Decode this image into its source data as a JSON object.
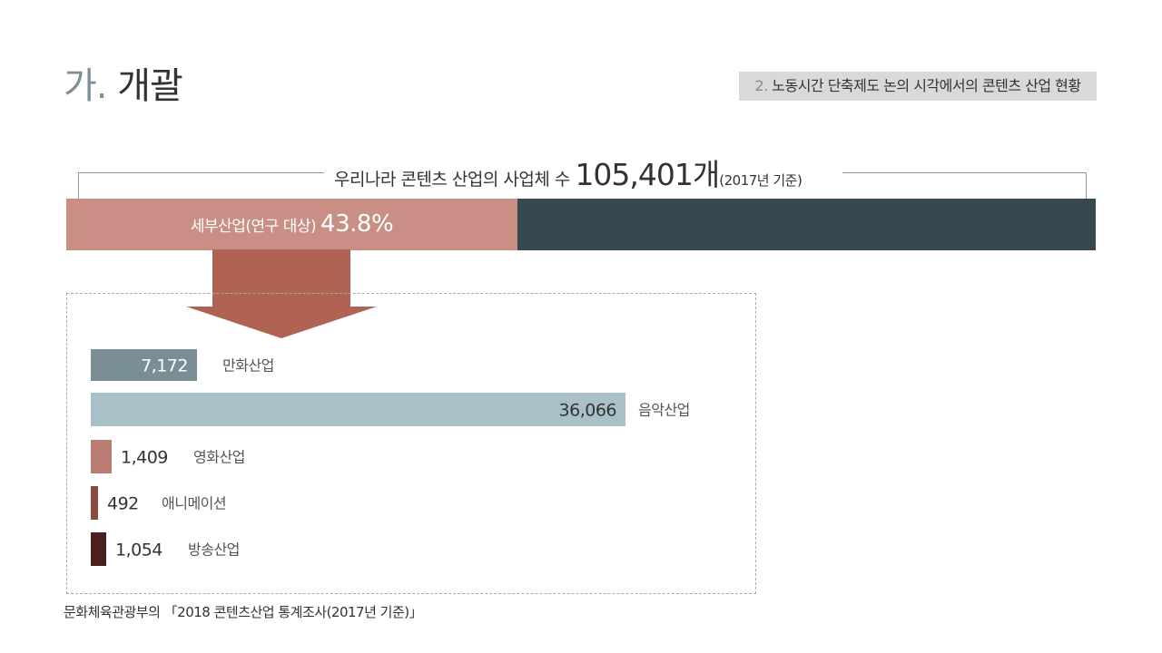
{
  "header": {
    "title_num": "가.",
    "title_text": "개괄",
    "section_num": "2.",
    "section_text": "노동시간 단축제도 논의 시각에서의 콘텐츠 산업 현황"
  },
  "total": {
    "prefix": "우리나라 콘텐츠 산업의 사업체 수",
    "value": "105,401개",
    "suffix": "(2017년 기준)"
  },
  "segment": {
    "label": "세부산업(연구 대상)",
    "percent": "43.8%",
    "fraction": 0.438,
    "color_part": "#c98f85",
    "color_rest": "#38484f"
  },
  "chart_data": {
    "type": "bar",
    "orientation": "horizontal",
    "categories": [
      "만화산업",
      "음악산업",
      "영화산업",
      "애니메이션",
      "방송산업"
    ],
    "values": [
      7172,
      36066,
      1409,
      492,
      1054
    ],
    "value_labels": [
      "7,172",
      "36,066",
      "1,409",
      "492",
      "1,054"
    ],
    "colors": [
      "#7a8e96",
      "#a9c0c8",
      "#b97b72",
      "#8a4c42",
      "#4c1f1a"
    ],
    "xlim": [
      0,
      36066
    ]
  },
  "source": "문화체육관광부의 「2018 콘텐츠산업 통계조사(2017년 기준)」"
}
